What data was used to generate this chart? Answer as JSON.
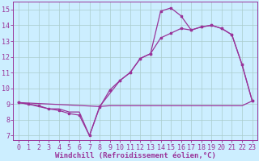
{
  "bg_color": "#cceeff",
  "line_color": "#993399",
  "grid_color": "#aacccc",
  "xlabel": "Windchill (Refroidissement éolien,°C)",
  "xlabel_fontsize": 6.5,
  "tick_fontsize": 6.0,
  "ylim": [
    6.7,
    15.5
  ],
  "xlim": [
    -0.5,
    23.5
  ],
  "yticks": [
    7,
    8,
    9,
    10,
    11,
    12,
    13,
    14,
    15
  ],
  "xticks": [
    0,
    1,
    2,
    3,
    4,
    5,
    6,
    7,
    8,
    9,
    10,
    11,
    12,
    13,
    14,
    15,
    16,
    17,
    18,
    19,
    20,
    21,
    22,
    23
  ],
  "series_main_x": [
    0,
    1,
    2,
    3,
    4,
    5,
    6,
    7,
    8,
    9,
    10,
    11,
    12,
    13,
    14,
    15,
    16,
    17,
    18,
    19,
    20,
    21,
    22,
    23
  ],
  "series_main_y": [
    9.1,
    9.0,
    8.9,
    8.7,
    8.6,
    8.4,
    8.3,
    7.0,
    8.8,
    9.9,
    10.5,
    11.0,
    11.9,
    12.2,
    14.9,
    15.1,
    14.6,
    13.7,
    13.9,
    14.0,
    13.8,
    13.4,
    11.5,
    9.2
  ],
  "series_flat_x": [
    0,
    1,
    2,
    3,
    4,
    5,
    6,
    7,
    8,
    9,
    10,
    11,
    12,
    13,
    14,
    15,
    16,
    17,
    18,
    19,
    20,
    21,
    22,
    23
  ],
  "series_flat_y": [
    9.1,
    9.0,
    8.85,
    8.7,
    8.7,
    8.5,
    8.5,
    7.0,
    8.85,
    8.9,
    8.9,
    8.9,
    8.9,
    8.9,
    8.9,
    8.9,
    8.9,
    8.9,
    8.9,
    8.9,
    8.9,
    8.9,
    8.9,
    9.2
  ],
  "series_diag_x": [
    0,
    8,
    10,
    11,
    12,
    13,
    14,
    15,
    16,
    17,
    18,
    19,
    20,
    21,
    22,
    23
  ],
  "series_diag_y": [
    9.1,
    8.85,
    10.5,
    11.0,
    11.9,
    12.2,
    13.2,
    13.5,
    13.8,
    13.7,
    13.9,
    14.0,
    13.8,
    13.4,
    11.5,
    9.2
  ]
}
